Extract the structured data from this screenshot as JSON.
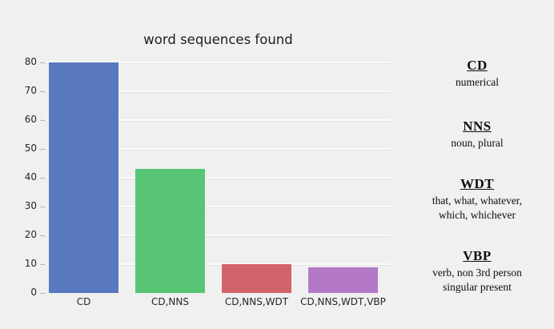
{
  "page": {
    "background": "#f0f0f0"
  },
  "chart_data": {
    "type": "bar",
    "title": "word sequences found",
    "categories": [
      "CD",
      "CD,NNS",
      "CD,NNS,WDT",
      "CD,NNS,WDT,VBP"
    ],
    "values": [
      80,
      43,
      10,
      9
    ],
    "colors": [
      "#5878c0",
      "#58c575",
      "#d2636b",
      "#b379c6"
    ],
    "xlabel": "",
    "ylabel": "",
    "ylim": [
      0,
      80
    ],
    "yticks": [
      0,
      10,
      20,
      30,
      40,
      50,
      60,
      70,
      80
    ],
    "grid": "horizontal",
    "legend_position": "none",
    "plot_background": "#f0f0f0",
    "gridline_color": "#fbfbfb",
    "tick_label_color": "#262626",
    "title_color": "#1c1c1c"
  },
  "definitions": [
    {
      "term": "CD",
      "definition": "numerical"
    },
    {
      "term": "NNS",
      "definition": "noun, plural"
    },
    {
      "term": "WDT",
      "definition": "that, what, whatever, which, whichever"
    },
    {
      "term": "VBP",
      "definition": "verb, non 3rd person singular present"
    }
  ]
}
